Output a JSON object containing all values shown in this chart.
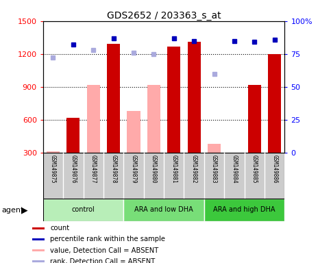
{
  "title": "GDS2652 / 203363_s_at",
  "samples": [
    "GSM149875",
    "GSM149876",
    "GSM149877",
    "GSM149878",
    "GSM149879",
    "GSM149880",
    "GSM149881",
    "GSM149882",
    "GSM149883",
    "GSM149884",
    "GSM149885",
    "GSM149886"
  ],
  "groups": [
    {
      "label": "control",
      "start": 0,
      "end": 3,
      "color": "#b8eeb8"
    },
    {
      "label": "ARA and low DHA",
      "start": 4,
      "end": 7,
      "color": "#78de78"
    },
    {
      "label": "ARA and high DHA",
      "start": 8,
      "end": 11,
      "color": "#3cc83c"
    }
  ],
  "count_values": [
    null,
    620,
    null,
    1290,
    null,
    null,
    1270,
    1310,
    null,
    null,
    920,
    1200
  ],
  "absent_values": [
    310,
    null,
    920,
    null,
    680,
    920,
    null,
    null,
    380,
    null,
    null,
    null
  ],
  "percentile_rank": [
    null,
    82,
    null,
    87,
    null,
    null,
    87,
    85,
    null,
    85,
    84,
    86
  ],
  "absent_rank": [
    72,
    null,
    78,
    null,
    76,
    75,
    null,
    null,
    60,
    null,
    null,
    null
  ],
  "ylim_left": [
    300,
    1500
  ],
  "ylim_right": [
    0,
    100
  ],
  "yticks_left": [
    300,
    600,
    900,
    1200,
    1500
  ],
  "yticks_right": [
    0,
    25,
    50,
    75,
    100
  ],
  "bar_color_present": "#cc0000",
  "bar_color_absent": "#ffaaaa",
  "dot_color_present": "#0000bb",
  "dot_color_absent": "#aaaadd",
  "bg_color": "#ffffff",
  "sample_box_color": "#cccccc",
  "figsize": [
    4.83,
    3.84
  ],
  "dpi": 100
}
